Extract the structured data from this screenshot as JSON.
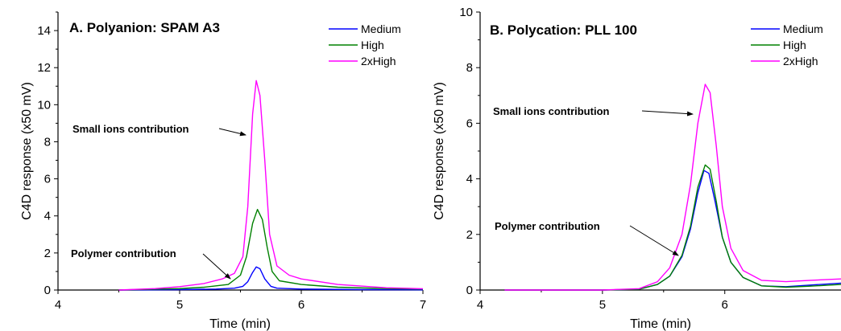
{
  "chart_data": [
    {
      "type": "line",
      "title": "A. Polyanion: SPAM A3",
      "xlabel": "Time (min)",
      "ylabel": "C4D response (x50 mV)",
      "xlim": [
        4,
        7
      ],
      "ylim": [
        0,
        15
      ],
      "xticks": [
        4,
        5,
        6,
        7
      ],
      "yticks": [
        0,
        2,
        4,
        6,
        8,
        10,
        12,
        14
      ],
      "grid": false,
      "legend_position": "top-right",
      "series": [
        {
          "name": "Medium",
          "color": "#0000ff",
          "points": [
            [
              4.5,
              0.0
            ],
            [
              5.0,
              0.02
            ],
            [
              5.3,
              0.05
            ],
            [
              5.45,
              0.1
            ],
            [
              5.52,
              0.2
            ],
            [
              5.56,
              0.45
            ],
            [
              5.6,
              0.95
            ],
            [
              5.63,
              1.25
            ],
            [
              5.66,
              1.15
            ],
            [
              5.7,
              0.6
            ],
            [
              5.75,
              0.2
            ],
            [
              5.8,
              0.1
            ],
            [
              6.0,
              0.05
            ],
            [
              6.5,
              0.02
            ],
            [
              7.0,
              0.01
            ]
          ]
        },
        {
          "name": "High",
          "color": "#008000",
          "points": [
            [
              4.5,
              0.0
            ],
            [
              5.0,
              0.08
            ],
            [
              5.2,
              0.15
            ],
            [
              5.4,
              0.3
            ],
            [
              5.5,
              0.8
            ],
            [
              5.55,
              1.8
            ],
            [
              5.6,
              3.6
            ],
            [
              5.64,
              4.35
            ],
            [
              5.68,
              3.8
            ],
            [
              5.72,
              2.3
            ],
            [
              5.76,
              1.0
            ],
            [
              5.82,
              0.5
            ],
            [
              6.0,
              0.3
            ],
            [
              6.3,
              0.15
            ],
            [
              6.7,
              0.08
            ],
            [
              7.0,
              0.05
            ]
          ]
        },
        {
          "name": "2xHigh",
          "color": "#ff00ff",
          "points": [
            [
              4.5,
              0.0
            ],
            [
              4.8,
              0.08
            ],
            [
              5.0,
              0.18
            ],
            [
              5.2,
              0.35
            ],
            [
              5.35,
              0.6
            ],
            [
              5.45,
              0.9
            ],
            [
              5.52,
              1.8
            ],
            [
              5.56,
              4.5
            ],
            [
              5.6,
              9.5
            ],
            [
              5.63,
              11.3
            ],
            [
              5.66,
              10.5
            ],
            [
              5.7,
              7.0
            ],
            [
              5.74,
              3.0
            ],
            [
              5.8,
              1.3
            ],
            [
              5.9,
              0.8
            ],
            [
              6.0,
              0.6
            ],
            [
              6.3,
              0.3
            ],
            [
              6.7,
              0.12
            ],
            [
              7.0,
              0.07
            ]
          ]
        }
      ],
      "annotations": [
        {
          "text": "Small ions contribution",
          "x": 5.55,
          "y": 8.4
        },
        {
          "text": "Polymer contribution",
          "x": 5.25,
          "y": 0.55
        }
      ]
    },
    {
      "type": "line",
      "title": "B. Polycation: PLL 100",
      "xlabel": "Time (min)",
      "ylabel": "C4D response (x50 mV)",
      "xlim": [
        4,
        6.95
      ],
      "ylim": [
        0,
        10
      ],
      "xticks": [
        4,
        5,
        6
      ],
      "yticks": [
        0,
        2,
        4,
        6,
        8,
        10
      ],
      "grid": false,
      "legend_position": "top-right",
      "series": [
        {
          "name": "Medium",
          "color": "#0000ff",
          "points": [
            [
              4.2,
              0.0
            ],
            [
              5.0,
              0.0
            ],
            [
              5.3,
              0.03
            ],
            [
              5.45,
              0.2
            ],
            [
              5.55,
              0.5
            ],
            [
              5.65,
              1.2
            ],
            [
              5.72,
              2.2
            ],
            [
              5.78,
              3.5
            ],
            [
              5.83,
              4.3
            ],
            [
              5.87,
              4.2
            ],
            [
              5.92,
              3.2
            ],
            [
              5.98,
              1.9
            ],
            [
              6.05,
              1.0
            ],
            [
              6.15,
              0.45
            ],
            [
              6.3,
              0.15
            ],
            [
              6.5,
              0.12
            ],
            [
              6.7,
              0.18
            ],
            [
              6.95,
              0.25
            ]
          ]
        },
        {
          "name": "High",
          "color": "#008000",
          "points": [
            [
              4.2,
              0.0
            ],
            [
              5.0,
              0.0
            ],
            [
              5.3,
              0.03
            ],
            [
              5.45,
              0.2
            ],
            [
              5.55,
              0.5
            ],
            [
              5.65,
              1.25
            ],
            [
              5.72,
              2.3
            ],
            [
              5.78,
              3.7
            ],
            [
              5.84,
              4.5
            ],
            [
              5.88,
              4.35
            ],
            [
              5.93,
              3.2
            ],
            [
              5.98,
              1.9
            ],
            [
              6.05,
              1.0
            ],
            [
              6.15,
              0.45
            ],
            [
              6.3,
              0.15
            ],
            [
              6.5,
              0.1
            ],
            [
              6.7,
              0.14
            ],
            [
              6.95,
              0.2
            ]
          ]
        },
        {
          "name": "2xHigh",
          "color": "#ff00ff",
          "points": [
            [
              4.2,
              0.0
            ],
            [
              5.0,
              0.0
            ],
            [
              5.3,
              0.05
            ],
            [
              5.45,
              0.3
            ],
            [
              5.55,
              0.8
            ],
            [
              5.65,
              2.0
            ],
            [
              5.72,
              3.8
            ],
            [
              5.78,
              6.0
            ],
            [
              5.84,
              7.4
            ],
            [
              5.88,
              7.1
            ],
            [
              5.93,
              5.2
            ],
            [
              5.98,
              3.0
            ],
            [
              6.05,
              1.5
            ],
            [
              6.15,
              0.7
            ],
            [
              6.3,
              0.35
            ],
            [
              6.5,
              0.3
            ],
            [
              6.7,
              0.35
            ],
            [
              6.95,
              0.4
            ]
          ]
        }
      ],
      "annotations": [
        {
          "text": "Small ions contribution",
          "x": 5.82,
          "y": 6.35
        },
        {
          "text": "Polymer contribution",
          "x": 5.62,
          "y": 1.35
        }
      ]
    }
  ]
}
